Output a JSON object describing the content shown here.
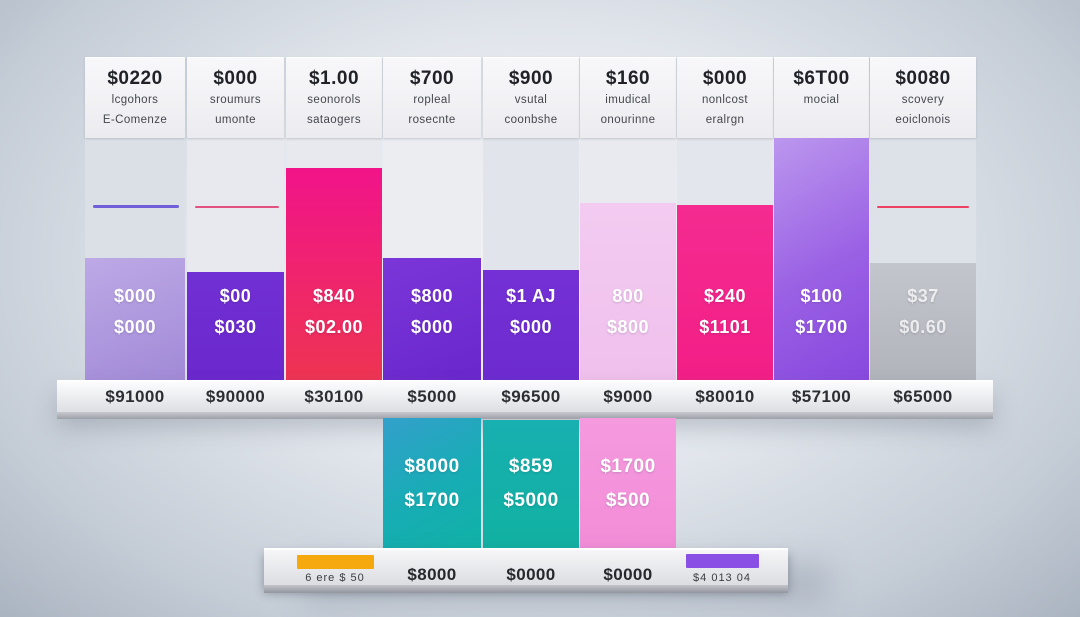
{
  "columns": [
    {
      "price": "$0220",
      "sub1": "lcgohors",
      "sub2": "E-Comenze",
      "bar_line1": "$000",
      "bar_line2": "$000",
      "shelf_value": "$91000"
    },
    {
      "price": "$000",
      "sub1": "sroumurs",
      "sub2": "umonte",
      "bar_line1": "$00",
      "bar_line2": "$030",
      "shelf_value": "$90000"
    },
    {
      "price": "$1.00",
      "sub1": "seonorols",
      "sub2": "sataogers",
      "bar_line1": "$840",
      "bar_line2": "$02.00",
      "shelf_value": "$30100"
    },
    {
      "price": "$700",
      "sub1": "ropleal",
      "sub2": "rosecnte",
      "bar_line1": "$800",
      "bar_line2": "$000",
      "shelf_value": "$5000"
    },
    {
      "price": "$900",
      "sub1": "vsutal",
      "sub2": "coonbshe",
      "bar_line1": "$1 AJ",
      "bar_line2": "$000",
      "shelf_value": "$96500"
    },
    {
      "price": "$160",
      "sub1": "imudical",
      "sub2": "onourinne",
      "bar_line1": "800",
      "bar_line2": "$800",
      "shelf_value": "$9000"
    },
    {
      "price": "$000",
      "sub1": "nonlcost",
      "sub2": "eralrgn",
      "bar_line1": "$240",
      "bar_line2": "$1101",
      "shelf_value": "$80010"
    },
    {
      "price": "$6T00",
      "sub1": "mocial",
      "sub2": "",
      "bar_line1": "$100",
      "bar_line2": "$1700",
      "shelf_value": "$57100"
    },
    {
      "price": "$0080",
      "sub1": "scovery",
      "sub2": "eoiclonois",
      "bar_line1": "$37",
      "bar_line2": "$0.60",
      "shelf_value": "$65000"
    }
  ],
  "lower_bars": [
    {
      "line1": "$8000",
      "line2": "$1700"
    },
    {
      "line1": "$859",
      "line2": "$5000"
    },
    {
      "line1": "$1700",
      "line2": "$500"
    }
  ],
  "shelf2": {
    "swatch1_label": "6 ere $ 50",
    "value1": "$8000",
    "value2": "$0000",
    "value3": "$0000",
    "swatch2_label": "$4 013 04"
  },
  "colors": {
    "purple_bar": "#6d2ad0",
    "light_purple_bar": "#b3a0e2",
    "crimson_bar": "#f01f74",
    "light_pink_bar": "#f2c8f0",
    "hot_pink_bar": "#f4268d",
    "tall_purple_gradient": "#9a60e4",
    "gray_bar": "#b9bcc2",
    "teal_bar": "#12b2a8",
    "lower_pink_bar": "#f492da",
    "orange_swatch": "#f6a90f",
    "purple_swatch": "#8a50e6",
    "line_purple": "#6f5fd8",
    "line_pink": "#e2517f",
    "line_red": "#ee4063"
  },
  "chart_data": {
    "type": "bar",
    "title": "",
    "xlabel": "",
    "ylabel": "",
    "note": "AI-generated 3D pricing-shelf chart; all text is garbled pseudo-English. Values below are approximate bar heights in pixels read from the image.",
    "categories": [
      "$0220",
      "$000",
      "$1.00",
      "$700",
      "$900",
      "$160",
      "$000",
      "$6T00",
      "$0080"
    ],
    "series": [
      {
        "name": "upper shelf bars",
        "unit": "px",
        "values": [
          122,
          108,
          212,
          122,
          110,
          177,
          175,
          242,
          117
        ]
      },
      {
        "name": "lower shelf bars",
        "unit": "px",
        "values": [
          null,
          null,
          null,
          133,
          131,
          133,
          null,
          null,
          null
        ]
      }
    ],
    "upper_bar_labels": [
      [
        "$000",
        "$000"
      ],
      [
        "$00",
        "$030"
      ],
      [
        "$840",
        "$02.00"
      ],
      [
        "$800",
        "$000"
      ],
      [
        "$1 AJ",
        "$000"
      ],
      [
        "800",
        "$800"
      ],
      [
        "$240",
        "$1101"
      ],
      [
        "$100",
        "$1700"
      ],
      [
        "$37",
        "$0.60"
      ]
    ],
    "lower_bar_labels": [
      [
        "$8000",
        "$1700"
      ],
      [
        "$859",
        "$5000"
      ],
      [
        "$1700",
        "$500"
      ]
    ],
    "shelf1_values": [
      "$91000",
      "$90000",
      "$30100",
      "$5000",
      "$96500",
      "$9000",
      "$80010",
      "$57100",
      "$65000"
    ],
    "shelf2_values": [
      "6 ere $ 50",
      "$8000",
      "$0000",
      "$0000",
      "$4 013 04"
    ],
    "legend_position": "none",
    "grid": false
  }
}
